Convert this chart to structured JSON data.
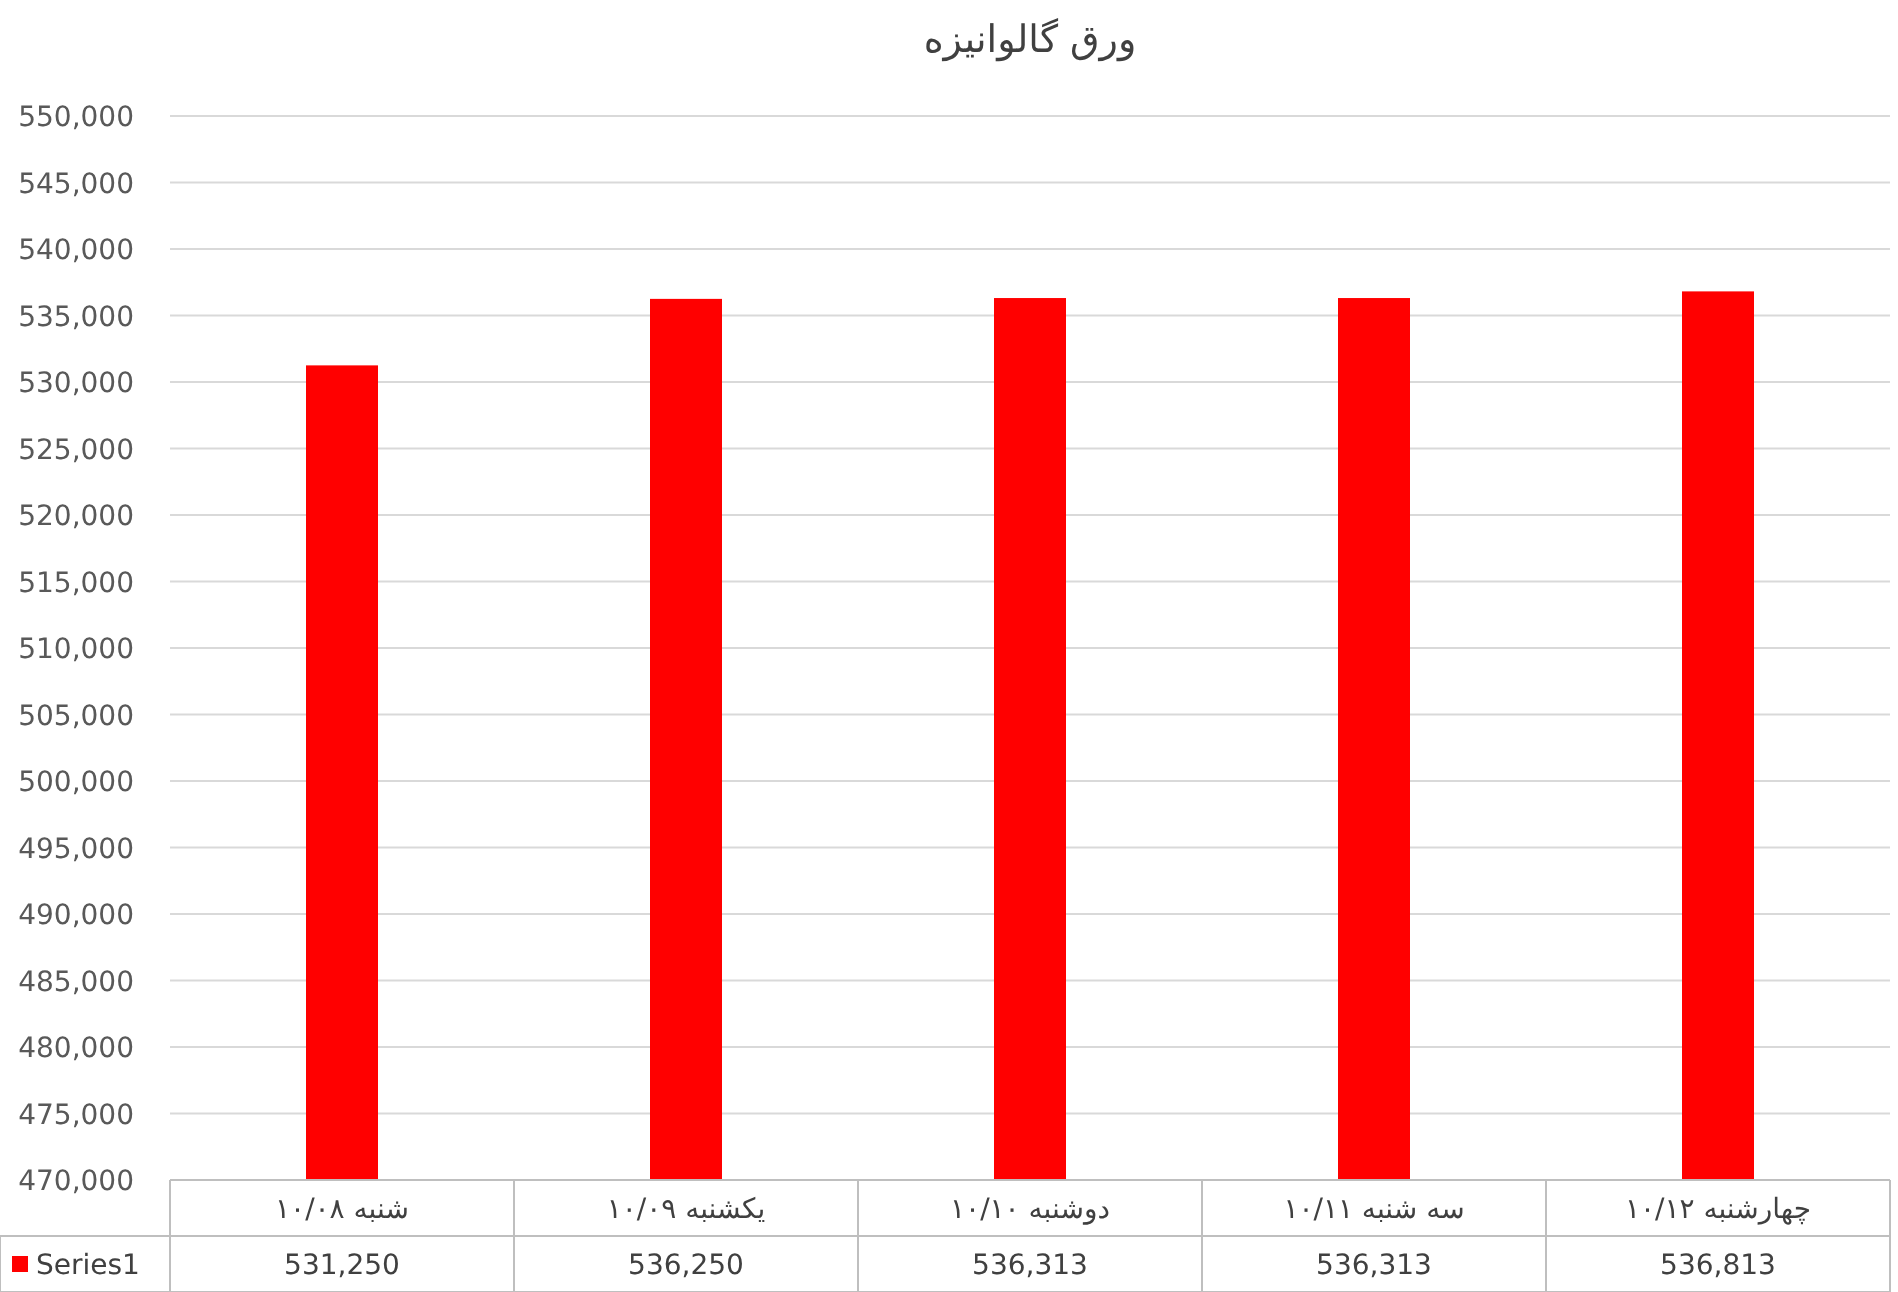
{
  "chart_data": {
    "type": "bar",
    "title": "ورق گالوانیزه",
    "categories": [
      "شنبه ۱۰/۰۸",
      "یکشنبه ۱۰/۰۹",
      "دوشنبه ۱۰/۱۰",
      "سه شنبه ۱۰/۱۱",
      "چهارشنبه ۱۰/۱۲"
    ],
    "series": [
      {
        "name": "Series1",
        "color": "#ff0000",
        "values": [
          531250,
          536250,
          536313,
          536313,
          536813
        ],
        "value_labels": [
          "531,250",
          "536,250",
          "536,313",
          "536,313",
          "536,813"
        ]
      }
    ],
    "ylim": [
      470000,
      550000
    ],
    "yticks": [
      {
        "value": 470000,
        "label": "470,000"
      },
      {
        "value": 475000,
        "label": "475,000"
      },
      {
        "value": 480000,
        "label": "480,000"
      },
      {
        "value": 485000,
        "label": "485,000"
      },
      {
        "value": 490000,
        "label": "490,000"
      },
      {
        "value": 495000,
        "label": "495,000"
      },
      {
        "value": 500000,
        "label": "500,000"
      },
      {
        "value": 505000,
        "label": "505,000"
      },
      {
        "value": 510000,
        "label": "510,000"
      },
      {
        "value": 515000,
        "label": "515,000"
      },
      {
        "value": 520000,
        "label": "520,000"
      },
      {
        "value": 525000,
        "label": "525,000"
      },
      {
        "value": 530000,
        "label": "530,000"
      },
      {
        "value": 535000,
        "label": "535,000"
      },
      {
        "value": 540000,
        "label": "540,000"
      },
      {
        "value": 545000,
        "label": "545,000"
      },
      {
        "value": 550000,
        "label": "550,000"
      }
    ],
    "grid": "y"
  }
}
